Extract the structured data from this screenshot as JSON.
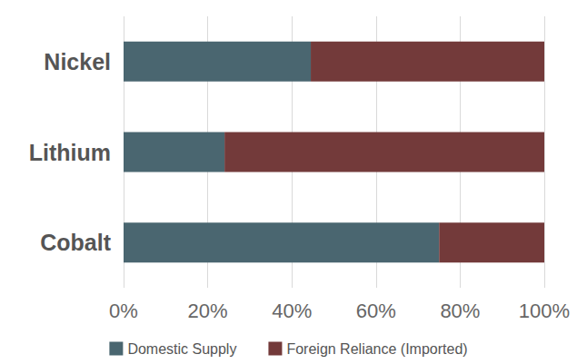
{
  "chart_data": {
    "type": "bar",
    "orientation": "horizontal",
    "stacked": true,
    "categories": [
      "Nickel",
      "Lithium",
      "Cobalt"
    ],
    "series": [
      {
        "name": "Domestic Supply",
        "color": "#4a6670",
        "values": [
          44.5,
          24,
          75
        ]
      },
      {
        "name": "Foreign Reliance (Imported)",
        "color": "#733a3a",
        "values": [
          55.5,
          76,
          25
        ]
      }
    ],
    "xlim": [
      0,
      100
    ],
    "xticks": [
      {
        "value": 0,
        "label": "0%"
      },
      {
        "value": 20,
        "label": "20%"
      },
      {
        "value": 40,
        "label": "40%"
      },
      {
        "value": 60,
        "label": "60%"
      },
      {
        "value": 80,
        "label": "80%"
      },
      {
        "value": 100,
        "label": "100%"
      }
    ],
    "grid": true,
    "legend": "bottom"
  }
}
